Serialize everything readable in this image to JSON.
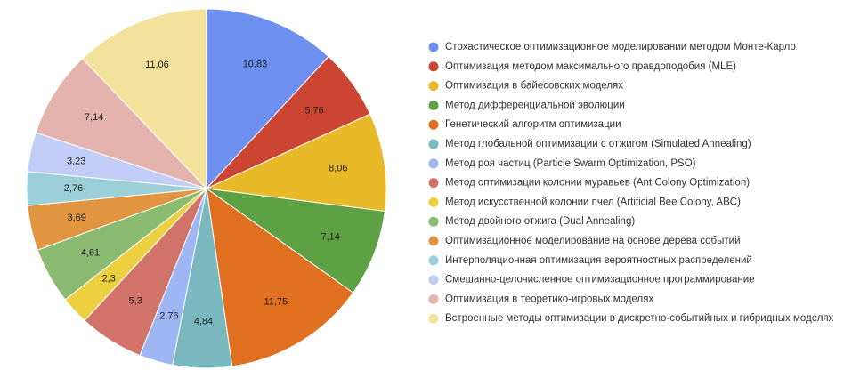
{
  "chart_data": {
    "type": "pie",
    "categories": [
      "Стохастическое оптимизационное моделировании методом Монте-Карло",
      "Оптимизация методом максимального правдоподобия (MLE)",
      "Оптимизация в байесовских моделях",
      "Метод дифференциальной эволюции",
      "Генетический алгоритм оптимизации",
      "Метод глобальной оптимизации с отжигом (Simulated Annealing)",
      "Метод роя частиц (Particle Swarm Optimization, PSO)",
      "Метод оптимизации колонии муравьев (Ant Colony Optimization)",
      "Метод искусственной колонии пчел (Artificial Bee Colony, ABC)",
      "Метод двойного отжига (Dual Annealing)",
      "Оптимизационное моделирование на основе дерева событий",
      "Интерполяционная оптимизация вероятностных распределений",
      "Смешанно-целочисленное оптимизационное программирование",
      "Оптимизация в теоретико-игровых моделях",
      "Встроенные методы оптимизации в дискретно-событийных и гибридных моделях"
    ],
    "values": [
      10.83,
      5.76,
      8.06,
      7.14,
      11.75,
      4.84,
      2.76,
      5.3,
      2.3,
      4.61,
      3.69,
      2.76,
      3.23,
      7.14,
      11.06
    ],
    "value_labels": [
      "10,83",
      "5,76",
      "8,06",
      "7,14",
      "11,75",
      "4,84",
      "2,76",
      "5,3",
      "2,3",
      "4,61",
      "3,69",
      "2,76",
      "3,23",
      "7,14",
      "11,06"
    ],
    "colors": [
      "#6d8ff0",
      "#cc4432",
      "#e8b928",
      "#5ea044",
      "#e07020",
      "#7ab8c0",
      "#9fb6f5",
      "#d2736a",
      "#edd040",
      "#8abb70",
      "#e29540",
      "#9ccfd8",
      "#c1cdf7",
      "#e5b3ae",
      "#f3e29c"
    ],
    "legend": "right"
  }
}
